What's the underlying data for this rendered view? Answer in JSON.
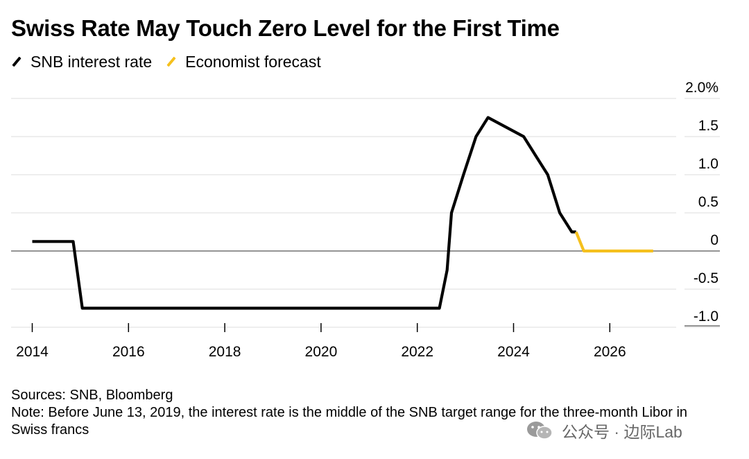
{
  "title": "Swiss Rate May Touch Zero Level for the First Time",
  "legend": [
    {
      "label": "SNB interest rate",
      "color": "#000000"
    },
    {
      "label": "Economist forecast",
      "color": "#f5c01d"
    }
  ],
  "footer": {
    "sources": "Sources: SNB, Bloomberg",
    "note": "Note: Before June 13, 2019, the interest rate is the middle of the SNB target range for the three-month Libor in Swiss francs"
  },
  "watermark": {
    "text": "公众号 · 边际Lab",
    "icon": "wechat-icon"
  },
  "chart_data": {
    "type": "line",
    "title": "Swiss Rate May Touch Zero Level for the First Time",
    "xlabel": "",
    "ylabel": "",
    "xlim": [
      2014,
      2027.2
    ],
    "ylim": [
      -1.0,
      2.0
    ],
    "grid": true,
    "legend_position": "top-left",
    "x_ticks": [
      2014,
      2016,
      2018,
      2020,
      2022,
      2024,
      2026
    ],
    "x_tick_labels": [
      "2014",
      "2016",
      "2018",
      "2020",
      "2022",
      "2024",
      "2026"
    ],
    "y_ticks": [
      2.0,
      1.5,
      1.0,
      0.5,
      0,
      -0.5,
      -1.0
    ],
    "y_tick_labels": [
      "2.0%",
      "1.5",
      "1.0",
      "0.5",
      "0",
      "-0.5",
      "-1.0"
    ],
    "series": [
      {
        "name": "SNB interest rate",
        "color": "#000000",
        "x": [
          2014.0,
          2014.85,
          2015.04,
          2022.46,
          2022.62,
          2022.71,
          2022.96,
          2023.22,
          2023.47,
          2024.21,
          2024.46,
          2024.71,
          2024.96,
          2025.21,
          2025.3
        ],
        "y": [
          0.125,
          0.125,
          -0.75,
          -0.75,
          -0.25,
          0.5,
          1.0,
          1.5,
          1.75,
          1.5,
          1.25,
          1.0,
          0.5,
          0.25,
          0.25
        ]
      },
      {
        "name": "Economist forecast",
        "color": "#f5c01d",
        "x": [
          2025.3,
          2025.46,
          2026.9
        ],
        "y": [
          0.25,
          0.0,
          0.0
        ]
      }
    ]
  }
}
